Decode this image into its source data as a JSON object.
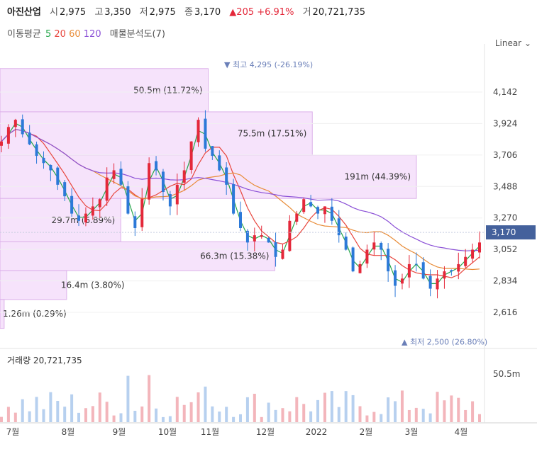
{
  "header": {
    "stock_name": "아진산업",
    "open_label": "시",
    "open_value": "2,975",
    "high_label": "고",
    "high_value": "3,350",
    "low_label": "저",
    "low_value": "2,975",
    "close_label": "종",
    "close_value": "3,170",
    "change": "▲205 +6.91%",
    "volume_label": "거",
    "volume_value": "20,721,735",
    "ma_title": "이동평균",
    "ma_periods": [
      "5",
      "20",
      "60",
      "120"
    ],
    "volume_profile_label": "매물분석도(7)",
    "scale_label": "Linear"
  },
  "colors": {
    "up": "#e4283a",
    "down": "#2c79d8",
    "ma5": "#25a64a",
    "ma20": "#e8453c",
    "ma60": "#e88c38",
    "ma120": "#8a4fd6",
    "profile_fill": "#f6e3fb",
    "profile_border": "#dcb0ea",
    "price_tag": "#44619c"
  },
  "chart_data": {
    "type": "candlestick",
    "y_axis_ticks": [
      "4,142",
      "3,924",
      "3,706",
      "3,488",
      "3,270",
      "3,052",
      "2,834",
      "2,616"
    ],
    "y_axis_values": [
      4142,
      3924,
      3706,
      3488,
      3270,
      3052,
      2834,
      2616
    ],
    "current_price": 3170,
    "current_price_label": "3,170",
    "high_marker": {
      "label": "최고",
      "price": 4295,
      "text": "4,295 (-26.19%)"
    },
    "low_marker": {
      "label": "최저",
      "price": 2500,
      "text": "2,500 (26.80%)"
    },
    "x_axis_labels": [
      "7월",
      "8월",
      "9월",
      "10월",
      "11월",
      "12월",
      "2022",
      "2월",
      "3월",
      "4월"
    ],
    "volume_profile": [
      {
        "label": "50.5m (11.72%)",
        "price_low": 4005,
        "price_high": 4305,
        "width_ratio": 0.5
      },
      {
        "label": "75.5m (17.51%)",
        "price_low": 3705,
        "price_high": 4005,
        "width_ratio": 0.75
      },
      {
        "label": "191m (44.39%)",
        "price_low": 3405,
        "price_high": 3705,
        "width_ratio": 1.0
      },
      {
        "label": "29.7m (6.89%)",
        "price_low": 3105,
        "price_high": 3405,
        "width_ratio": 0.29
      },
      {
        "label": "66.3m (15.38%)",
        "price_low": 2905,
        "price_high": 3105,
        "width_ratio": 0.66
      },
      {
        "label": "16.4m (3.80%)",
        "price_low": 2705,
        "price_high": 2905,
        "width_ratio": 0.16
      },
      {
        "label": "1.26m (0.29%)",
        "price_low": 2505,
        "price_high": 2705,
        "width_ratio": 0.01
      }
    ],
    "price_series": [
      3800,
      3900,
      3950,
      3850,
      3780,
      3700,
      3650,
      3600,
      3500,
      3420,
      3300,
      3250,
      3300,
      3350,
      3400,
      3550,
      3600,
      3500,
      3300,
      3200,
      3400,
      3650,
      3600,
      3450,
      3350,
      3500,
      3600,
      3800,
      3950,
      3750,
      3700,
      3600,
      3500,
      3300,
      3200,
      3100,
      3150,
      3150,
      3100,
      3000,
      3050,
      3250,
      3300,
      3400,
      3350,
      3300,
      3350,
      3250,
      3150,
      3050,
      2900,
      2950,
      3050,
      3100,
      3050,
      2900,
      2800,
      2850,
      2950,
      2950,
      2850,
      2780,
      2850,
      2900,
      2900,
      2950,
      3000,
      3050,
      3100
    ],
    "volume_section": {
      "label": "거래량",
      "value": "20,721,735",
      "axis_label": "50.5m",
      "axis_value": 50500000
    }
  }
}
